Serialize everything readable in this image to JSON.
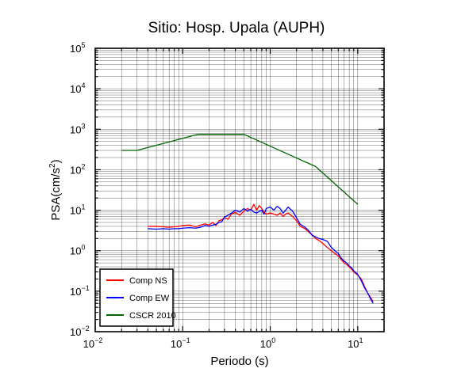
{
  "chart_data": {
    "type": "line",
    "title": "Sitio: Hosp. Upala (AUPH)",
    "xlabel": "Periodo (s)",
    "ylabel_main": "PSA(cm/s",
    "ylabel_exp": "2",
    "ylabel_close": ")",
    "x_scale": "log",
    "y_scale": "log",
    "xlim": [
      0.01,
      20
    ],
    "ylim": [
      0.01,
      100000
    ],
    "grid": true,
    "legend_position": "bottom-left",
    "x_ticks": [
      {
        "value": 0.01,
        "base": "10",
        "exp": "−2"
      },
      {
        "value": 0.1,
        "base": "10",
        "exp": "−1"
      },
      {
        "value": 1,
        "base": "10",
        "exp": "0"
      },
      {
        "value": 10,
        "base": "10",
        "exp": "1"
      }
    ],
    "y_ticks": [
      {
        "value": 0.01,
        "base": "10",
        "exp": "−2"
      },
      {
        "value": 0.1,
        "base": "10",
        "exp": "−1"
      },
      {
        "value": 1,
        "base": "10",
        "exp": "0"
      },
      {
        "value": 10,
        "base": "10",
        "exp": "1"
      },
      {
        "value": 100,
        "base": "10",
        "exp": "2"
      },
      {
        "value": 1000,
        "base": "10",
        "exp": "3"
      },
      {
        "value": 10000,
        "base": "10",
        "exp": "4"
      },
      {
        "value": 100000,
        "base": "10",
        "exp": "5"
      }
    ],
    "series": [
      {
        "name": "Comp NS",
        "color": "#ff0000",
        "points": [
          [
            0.04,
            4.0
          ],
          [
            0.05,
            4.0
          ],
          [
            0.06,
            3.9
          ],
          [
            0.07,
            3.8
          ],
          [
            0.08,
            3.9
          ],
          [
            0.09,
            4.0
          ],
          [
            0.1,
            4.2
          ],
          [
            0.12,
            4.3
          ],
          [
            0.14,
            3.9
          ],
          [
            0.16,
            4.3
          ],
          [
            0.18,
            4.6
          ],
          [
            0.2,
            4.3
          ],
          [
            0.22,
            5.0
          ],
          [
            0.24,
            4.2
          ],
          [
            0.26,
            5.5
          ],
          [
            0.28,
            5.8
          ],
          [
            0.3,
            6.6
          ],
          [
            0.33,
            6.0
          ],
          [
            0.36,
            8.0
          ],
          [
            0.4,
            8.8
          ],
          [
            0.45,
            7.5
          ],
          [
            0.5,
            9.5
          ],
          [
            0.55,
            11.0
          ],
          [
            0.6,
            10.0
          ],
          [
            0.65,
            14.0
          ],
          [
            0.7,
            10.0
          ],
          [
            0.75,
            13.0
          ],
          [
            0.8,
            11.0
          ],
          [
            0.85,
            9.0
          ],
          [
            0.9,
            8.0
          ],
          [
            1.0,
            8.5
          ],
          [
            1.1,
            8.0
          ],
          [
            1.2,
            7.5
          ],
          [
            1.3,
            8.5
          ],
          [
            1.4,
            7.0
          ],
          [
            1.5,
            8.0
          ],
          [
            1.6,
            8.5
          ],
          [
            1.8,
            7.0
          ],
          [
            2.0,
            5.5
          ],
          [
            2.2,
            4.0
          ],
          [
            2.5,
            3.5
          ],
          [
            2.8,
            2.8
          ],
          [
            3.0,
            2.5
          ],
          [
            3.3,
            2.0
          ],
          [
            3.6,
            1.8
          ],
          [
            4.0,
            1.5
          ],
          [
            4.5,
            1.2
          ],
          [
            5.0,
            1.0
          ],
          [
            5.5,
            0.85
          ],
          [
            6.0,
            0.75
          ],
          [
            6.5,
            0.6
          ],
          [
            7.0,
            0.5
          ],
          [
            7.5,
            0.45
          ],
          [
            8.0,
            0.4
          ],
          [
            8.5,
            0.35
          ],
          [
            9.0,
            0.3
          ],
          [
            10.0,
            0.25
          ],
          [
            11.0,
            0.2
          ],
          [
            12.0,
            0.13
          ],
          [
            13.0,
            0.09
          ],
          [
            14.0,
            0.07
          ],
          [
            15.0,
            0.055
          ]
        ]
      },
      {
        "name": "Comp EW",
        "color": "#0000ff",
        "points": [
          [
            0.04,
            3.5
          ],
          [
            0.05,
            3.4
          ],
          [
            0.06,
            3.5
          ],
          [
            0.07,
            3.4
          ],
          [
            0.08,
            3.5
          ],
          [
            0.09,
            3.5
          ],
          [
            0.1,
            3.6
          ],
          [
            0.12,
            3.7
          ],
          [
            0.14,
            3.6
          ],
          [
            0.16,
            3.8
          ],
          [
            0.18,
            4.2
          ],
          [
            0.2,
            4.0
          ],
          [
            0.22,
            4.3
          ],
          [
            0.24,
            4.5
          ],
          [
            0.26,
            5.0
          ],
          [
            0.28,
            5.2
          ],
          [
            0.3,
            6.8
          ],
          [
            0.33,
            7.5
          ],
          [
            0.36,
            8.5
          ],
          [
            0.4,
            10.0
          ],
          [
            0.45,
            9.0
          ],
          [
            0.5,
            11.0
          ],
          [
            0.55,
            9.5
          ],
          [
            0.6,
            10.5
          ],
          [
            0.65,
            9.0
          ],
          [
            0.7,
            8.5
          ],
          [
            0.75,
            9.5
          ],
          [
            0.8,
            10.0
          ],
          [
            0.85,
            8.0
          ],
          [
            0.9,
            11.0
          ],
          [
            1.0,
            12.0
          ],
          [
            1.1,
            10.0
          ],
          [
            1.2,
            12.5
          ],
          [
            1.3,
            11.0
          ],
          [
            1.4,
            8.5
          ],
          [
            1.5,
            10.0
          ],
          [
            1.6,
            12.0
          ],
          [
            1.8,
            9.5
          ],
          [
            2.0,
            6.5
          ],
          [
            2.2,
            4.5
          ],
          [
            2.5,
            3.8
          ],
          [
            2.8,
            3.0
          ],
          [
            3.0,
            2.4
          ],
          [
            3.3,
            2.2
          ],
          [
            3.6,
            2.0
          ],
          [
            4.0,
            1.9
          ],
          [
            4.5,
            1.7
          ],
          [
            5.0,
            1.2
          ],
          [
            5.5,
            1.0
          ],
          [
            6.0,
            0.85
          ],
          [
            6.5,
            0.65
          ],
          [
            7.0,
            0.55
          ],
          [
            7.5,
            0.5
          ],
          [
            8.0,
            0.42
          ],
          [
            8.5,
            0.38
          ],
          [
            9.0,
            0.32
          ],
          [
            10.0,
            0.26
          ],
          [
            11.0,
            0.18
          ],
          [
            12.0,
            0.12
          ],
          [
            13.0,
            0.09
          ],
          [
            14.0,
            0.065
          ],
          [
            15.0,
            0.05
          ]
        ]
      },
      {
        "name": "CSCR 2010",
        "color": "#006400",
        "points": [
          [
            0.02,
            300
          ],
          [
            0.03,
            300
          ],
          [
            0.15,
            750
          ],
          [
            0.5,
            750
          ],
          [
            3.3,
            120
          ],
          [
            10.0,
            14
          ]
        ]
      }
    ]
  }
}
